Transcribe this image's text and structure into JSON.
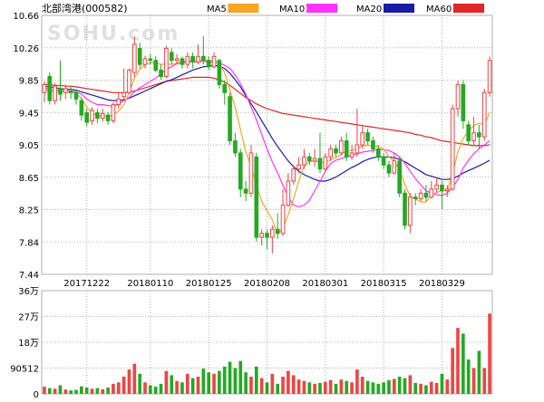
{
  "header": {
    "title": "北部湾港(000582)",
    "watermark": "SOHU.com"
  },
  "legend": [
    {
      "label": "MA5",
      "color": "#f5a623"
    },
    {
      "label": "MA10",
      "color": "#ff33ff"
    },
    {
      "label": "MA20",
      "color": "#1a1aa6"
    },
    {
      "label": "MA60",
      "color": "#e32626"
    }
  ],
  "colors": {
    "up": "#ee4444",
    "down": "#22aa22",
    "grid": "#b0b0b0",
    "axis_text": "#000000"
  },
  "chart_data": {
    "type": "candlestick",
    "price_axis": {
      "ylim": [
        7.44,
        10.66
      ],
      "tick_labels": [
        "10.66",
        "10.26",
        "9.85",
        "9.45",
        "9.05",
        "8.65",
        "8.25",
        "7.84",
        "7.44"
      ]
    },
    "volume_axis": {
      "ylim": [
        0,
        360000
      ],
      "tick_labels": [
        "36万",
        "27万",
        "18万",
        "90512",
        "0"
      ]
    },
    "x_tick_labels": [
      {
        "label": "20171222",
        "index": 8
      },
      {
        "label": "20180110",
        "index": 20
      },
      {
        "label": "20180125",
        "index": 31
      },
      {
        "label": "20180208",
        "index": 42
      },
      {
        "label": "20180301",
        "index": 53
      },
      {
        "label": "20180315",
        "index": 64
      },
      {
        "label": "20180329",
        "index": 75
      }
    ],
    "candles": [
      [
        9.7,
        9.8,
        9.58,
        9.84
      ],
      [
        9.9,
        9.6,
        9.55,
        9.95
      ],
      [
        9.6,
        9.78,
        9.55,
        9.82
      ],
      [
        9.75,
        9.68,
        9.6,
        10.1
      ],
      [
        9.7,
        9.75,
        9.62,
        9.8
      ],
      [
        9.72,
        9.7,
        9.62,
        9.78
      ],
      [
        9.7,
        9.62,
        9.55,
        9.74
      ],
      [
        9.6,
        9.42,
        9.35,
        9.64
      ],
      [
        9.45,
        9.33,
        9.28,
        9.5
      ],
      [
        9.35,
        9.48,
        9.3,
        9.52
      ],
      [
        9.45,
        9.38,
        9.32,
        9.5
      ],
      [
        9.38,
        9.44,
        9.34,
        9.5
      ],
      [
        9.42,
        9.35,
        9.3,
        9.46
      ],
      [
        9.35,
        9.55,
        9.32,
        9.58
      ],
      [
        9.55,
        9.62,
        9.5,
        9.7
      ],
      [
        9.65,
        9.7,
        9.6,
        10.0
      ],
      [
        9.7,
        9.98,
        9.68,
        10.0
      ],
      [
        9.95,
        10.3,
        9.9,
        10.4
      ],
      [
        10.25,
        10.05,
        10.0,
        10.32
      ],
      [
        10.05,
        10.12,
        10.0,
        10.16
      ],
      [
        10.12,
        10.1,
        10.05,
        10.18
      ],
      [
        10.1,
        9.98,
        9.95,
        10.15
      ],
      [
        9.98,
        9.9,
        9.86,
        10.05
      ],
      [
        9.9,
        10.25,
        9.88,
        10.28
      ],
      [
        10.2,
        10.1,
        10.05,
        10.25
      ],
      [
        10.1,
        10.12,
        10.05,
        10.18
      ],
      [
        10.12,
        10.05,
        10.0,
        10.15
      ],
      [
        10.05,
        10.15,
        10.0,
        10.2
      ],
      [
        10.15,
        10.08,
        10.0,
        10.2
      ],
      [
        10.08,
        10.15,
        10.05,
        10.3
      ],
      [
        10.15,
        10.1,
        10.05,
        10.4
      ],
      [
        10.1,
        10.02,
        9.98,
        10.15
      ],
      [
        10.02,
        10.15,
        10.0,
        10.2
      ],
      [
        10.1,
        9.8,
        9.75,
        10.12
      ],
      [
        9.8,
        9.7,
        9.55,
        9.85
      ],
      [
        9.65,
        9.1,
        9.05,
        9.7
      ],
      [
        9.1,
        8.95,
        8.9,
        9.2
      ],
      [
        8.95,
        8.5,
        8.4,
        9.0
      ],
      [
        8.5,
        8.45,
        8.35,
        8.6
      ],
      [
        8.45,
        8.95,
        8.4,
        9.05
      ],
      [
        8.9,
        7.9,
        7.85,
        8.95
      ],
      [
        7.9,
        7.95,
        7.8,
        8.0
      ],
      [
        7.95,
        7.9,
        7.75,
        8.0
      ],
      [
        7.9,
        8.0,
        7.7,
        8.05
      ],
      [
        8.0,
        7.95,
        7.88,
        8.2
      ],
      [
        7.95,
        8.3,
        7.92,
        8.5
      ],
      [
        8.3,
        8.6,
        8.28,
        8.7
      ],
      [
        8.6,
        8.75,
        8.55,
        8.8
      ],
      [
        8.75,
        8.8,
        8.7,
        8.9
      ],
      [
        8.8,
        8.9,
        8.75,
        9.0
      ],
      [
        8.9,
        8.85,
        8.8,
        8.95
      ],
      [
        8.85,
        8.88,
        8.78,
        9.0
      ],
      [
        8.88,
        8.75,
        8.7,
        9.2
      ],
      [
        8.75,
        8.9,
        8.72,
        8.95
      ],
      [
        8.9,
        9.0,
        8.85,
        9.05
      ],
      [
        9.0,
        8.95,
        8.9,
        9.05
      ],
      [
        8.95,
        9.1,
        8.92,
        9.15
      ],
      [
        9.1,
        8.9,
        8.85,
        9.2
      ],
      [
        8.9,
        8.95,
        8.86,
        9.05
      ],
      [
        8.95,
        9.05,
        8.9,
        9.5
      ],
      [
        9.05,
        9.2,
        9.0,
        9.3
      ],
      [
        9.2,
        9.1,
        9.05,
        9.25
      ],
      [
        9.1,
        9.0,
        8.95,
        9.15
      ],
      [
        9.0,
        8.9,
        8.85,
        9.05
      ],
      [
        8.9,
        8.8,
        8.75,
        8.95
      ],
      [
        8.8,
        8.7,
        8.65,
        8.85
      ],
      [
        8.7,
        8.85,
        8.68,
        8.95
      ],
      [
        8.85,
        8.45,
        8.4,
        8.9
      ],
      [
        8.45,
        8.05,
        8.0,
        8.5
      ],
      [
        8.05,
        8.4,
        7.95,
        8.45
      ],
      [
        8.4,
        8.38,
        8.3,
        8.45
      ],
      [
        8.38,
        8.45,
        8.35,
        8.5
      ],
      [
        8.45,
        8.4,
        8.35,
        8.55
      ],
      [
        8.4,
        8.5,
        8.38,
        8.6
      ],
      [
        8.5,
        8.55,
        8.45,
        8.65
      ],
      [
        8.55,
        8.48,
        8.25,
        8.6
      ],
      [
        8.48,
        8.5,
        8.4,
        8.55
      ],
      [
        8.5,
        9.5,
        8.48,
        9.55
      ],
      [
        9.5,
        9.8,
        9.4,
        9.85
      ],
      [
        9.8,
        9.35,
        9.25,
        9.85
      ],
      [
        9.3,
        9.1,
        9.05,
        9.35
      ],
      [
        9.1,
        9.2,
        9.05,
        9.4
      ],
      [
        9.2,
        9.15,
        9.0,
        9.3
      ],
      [
        9.15,
        9.7,
        9.1,
        9.75
      ],
      [
        9.7,
        10.1,
        9.65,
        10.15
      ]
    ],
    "ma5": [
      9.74,
      9.71,
      9.71,
      9.73,
      9.7,
      9.7,
      9.69,
      9.63,
      9.52,
      9.45,
      9.41,
      9.41,
      9.4,
      9.42,
      9.47,
      9.55,
      9.7,
      9.88,
      9.99,
      10.05,
      10.07,
      10.07,
      10.05,
      10.06,
      10.05,
      10.07,
      10.08,
      10.1,
      10.1,
      10.1,
      10.1,
      10.1,
      10.1,
      10.06,
      9.95,
      9.73,
      9.52,
      9.24,
      8.96,
      8.78,
      8.55,
      8.35,
      8.23,
      8.12,
      7.94,
      8.02,
      8.18,
      8.38,
      8.6,
      8.79,
      8.84,
      8.85,
      8.83,
      8.83,
      8.87,
      8.89,
      8.93,
      8.98,
      8.98,
      9.0,
      9.04,
      9.04,
      9.04,
      9.03,
      9.0,
      8.9,
      8.85,
      8.74,
      8.56,
      8.41,
      8.38,
      8.34,
      8.34,
      8.43,
      8.46,
      8.48,
      8.48,
      8.69,
      8.96,
      9.13,
      9.22,
      9.29,
      9.32,
      9.3,
      9.45
    ],
    "ma10": [
      9.76,
      9.74,
      9.73,
      9.72,
      9.72,
      9.72,
      9.71,
      9.68,
      9.62,
      9.58,
      9.55,
      9.55,
      9.54,
      9.53,
      9.56,
      9.6,
      9.64,
      9.71,
      9.76,
      9.8,
      9.84,
      9.88,
      9.93,
      9.99,
      10.02,
      10.06,
      10.07,
      10.08,
      10.08,
      10.08,
      10.09,
      10.08,
      10.08,
      10.07,
      10.04,
      10.0,
      9.92,
      9.81,
      9.68,
      9.52,
      9.36,
      9.18,
      9.0,
      8.84,
      8.7,
      8.55,
      8.4,
      8.3,
      8.28,
      8.3,
      8.36,
      8.48,
      8.6,
      8.72,
      8.82,
      8.86,
      8.88,
      8.9,
      8.92,
      8.94,
      8.96,
      8.97,
      8.98,
      8.99,
      8.99,
      8.98,
      8.95,
      8.9,
      8.82,
      8.72,
      8.63,
      8.55,
      8.48,
      8.45,
      8.43,
      8.42,
      8.45,
      8.52,
      8.62,
      8.76,
      8.86,
      8.94,
      9.0,
      9.05,
      9.1
    ],
    "ma20": [
      9.78,
      9.77,
      9.76,
      9.75,
      9.74,
      9.74,
      9.73,
      9.71,
      9.69,
      9.67,
      9.65,
      9.63,
      9.61,
      9.6,
      9.6,
      9.61,
      9.63,
      9.66,
      9.69,
      9.72,
      9.75,
      9.78,
      9.81,
      9.84,
      9.86,
      9.89,
      9.92,
      9.95,
      9.98,
      10.0,
      10.02,
      10.03,
      10.04,
      10.03,
      10.0,
      9.94,
      9.86,
      9.77,
      9.66,
      9.56,
      9.46,
      9.35,
      9.24,
      9.13,
      9.03,
      8.94,
      8.85,
      8.78,
      8.72,
      8.68,
      8.65,
      8.62,
      8.6,
      8.6,
      8.62,
      8.65,
      8.69,
      8.73,
      8.77,
      8.8,
      8.84,
      8.87,
      8.89,
      8.9,
      8.9,
      8.9,
      8.89,
      8.87,
      8.84,
      8.8,
      8.76,
      8.72,
      8.68,
      8.66,
      8.64,
      8.62,
      8.62,
      8.63,
      8.66,
      8.7,
      8.73,
      8.76,
      8.79,
      8.82,
      8.86
    ],
    "ma60": [
      9.8,
      9.8,
      9.79,
      9.79,
      9.78,
      9.78,
      9.77,
      9.76,
      9.75,
      9.74,
      9.73,
      9.72,
      9.71,
      9.7,
      9.7,
      9.7,
      9.71,
      9.72,
      9.74,
      9.76,
      9.78,
      9.8,
      9.82,
      9.84,
      9.85,
      9.86,
      9.87,
      9.88,
      9.89,
      9.89,
      9.89,
      9.89,
      9.88,
      9.86,
      9.83,
      9.79,
      9.74,
      9.69,
      9.64,
      9.6,
      9.56,
      9.53,
      9.5,
      9.48,
      9.46,
      9.44,
      9.43,
      9.42,
      9.41,
      9.4,
      9.39,
      9.38,
      9.37,
      9.36,
      9.35,
      9.34,
      9.33,
      9.32,
      9.31,
      9.3,
      9.29,
      9.28,
      9.27,
      9.26,
      9.25,
      9.24,
      9.23,
      9.22,
      9.21,
      9.2,
      9.18,
      9.17,
      9.15,
      9.14,
      9.12,
      9.1,
      9.09,
      9.08,
      9.07,
      9.06,
      9.05,
      9.04,
      9.04,
      9.04,
      9.05
    ],
    "volumes": [
      25000,
      20000,
      18000,
      30000,
      15000,
      12000,
      14000,
      26000,
      22000,
      18000,
      20000,
      16000,
      22000,
      35000,
      40000,
      60000,
      85000,
      105000,
      70000,
      40000,
      30000,
      25000,
      35000,
      80000,
      65000,
      45000,
      40000,
      70000,
      55000,
      60000,
      88000,
      75000,
      70000,
      80000,
      95000,
      112000,
      90000,
      115000,
      75000,
      60000,
      95000,
      55000,
      40000,
      70000,
      35000,
      60000,
      80000,
      65000,
      50000,
      45000,
      40000,
      35000,
      38000,
      42000,
      48000,
      35000,
      50000,
      45000,
      40000,
      85000,
      60000,
      45000,
      40000,
      35000,
      40000,
      48000,
      52000,
      60000,
      55000,
      65000,
      38000,
      35000,
      30000,
      42000,
      38000,
      70000,
      50000,
      160000,
      230000,
      210000,
      120000,
      90000,
      150000,
      90000,
      280000
    ]
  }
}
